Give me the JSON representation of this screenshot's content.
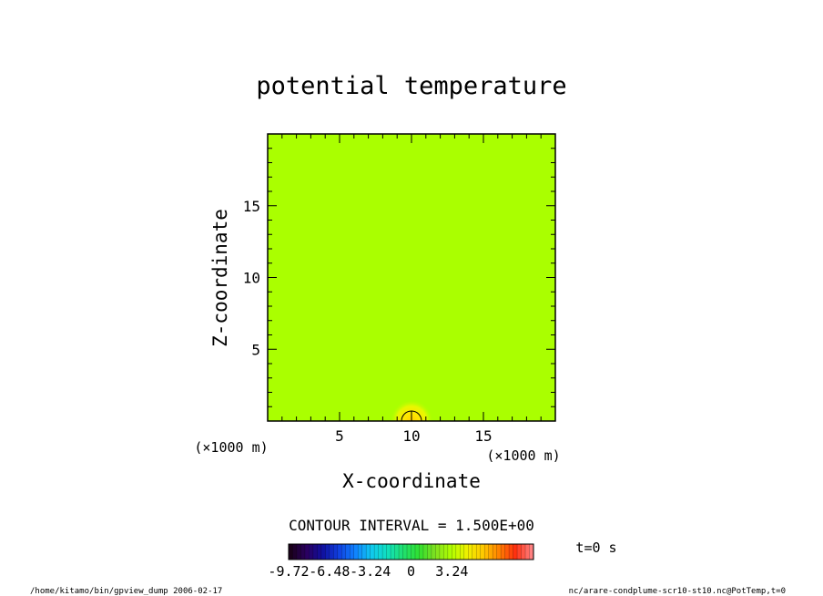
{
  "chart_data": {
    "type": "heatmap",
    "title": "potential temperature",
    "xlabel": "X-coordinate",
    "ylabel": "Z-coordinate",
    "x_unit_label": "(×1000 m)",
    "y_unit_label": "(×1000 m)",
    "xlim": [
      0,
      20
    ],
    "ylim": [
      0,
      20
    ],
    "xticks": [
      5,
      10,
      15
    ],
    "yticks": [
      5,
      10,
      15
    ],
    "background_value": 0,
    "features": [
      {
        "kind": "warm-bubble",
        "x": 10,
        "z": 0,
        "peak_value": 3.24,
        "radius": 1.5
      }
    ],
    "contour_interval_text": "CONTOUR INTERVAL = 1.500E+00",
    "colorbar": {
      "min": -9.72,
      "max": 9.72,
      "tick_labels": [
        "-9.72",
        "-6.48",
        "-3.24",
        "0",
        "3.24"
      ],
      "tick_values": [
        -9.72,
        -6.48,
        -3.24,
        0,
        3.24
      ],
      "colors": [
        "#1a001a",
        "#2a0060",
        "#1010a0",
        "#1040e0",
        "#1080ff",
        "#10c8f0",
        "#10e0c0",
        "#20e070",
        "#30e030",
        "#80e020",
        "#b0ff00",
        "#f0f000",
        "#ffc800",
        "#ff8000",
        "#ff3010",
        "#ff8080"
      ]
    }
  },
  "time_label": "t=0 s",
  "footer": {
    "left": "/home/kitamo/bin/gpview_dump  2006-02-17",
    "right": "nc/arare-condplume-scr10-st10.nc@PotTemp,t=0"
  },
  "colors": {
    "field": "#aaff00",
    "frame": "#000000"
  }
}
